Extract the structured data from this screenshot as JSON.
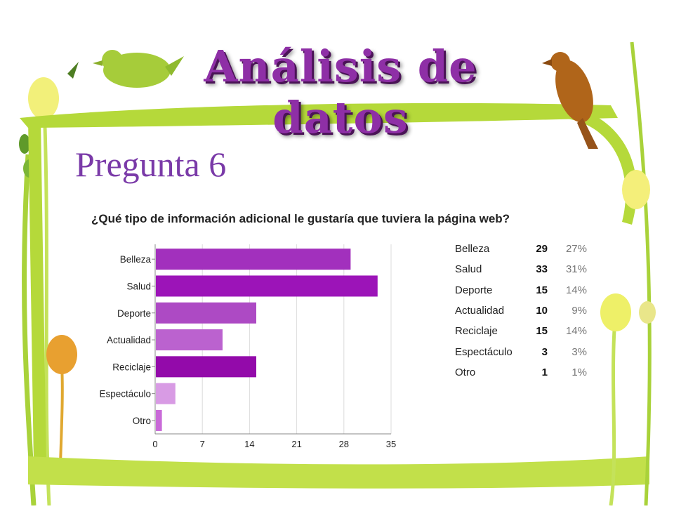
{
  "slide": {
    "title": "Análisis de datos",
    "subtitle": "Pregunta 6"
  },
  "colors": {
    "title": "#8e2fa6",
    "frame_green": "#b5d93a",
    "bar_colors": [
      "#a230bd",
      "#9c14b8",
      "#ad4ac4",
      "#bb62cf",
      "#930aaa",
      "#d89be4",
      "#c96ad8"
    ]
  },
  "chart_data": {
    "type": "bar",
    "orientation": "horizontal",
    "title": "¿Qué tipo de información adicional le gustaría que tuviera la página web?",
    "categories": [
      "Belleza",
      "Salud",
      "Deporte",
      "Actualidad",
      "Reciclaje",
      "Espectáculo",
      "Otro"
    ],
    "values": [
      29,
      33,
      15,
      10,
      15,
      3,
      1
    ],
    "percentages": [
      "27%",
      "31%",
      "14%",
      "9%",
      "14%",
      "3%",
      "1%"
    ],
    "xlim": [
      0,
      35
    ],
    "xticks": [
      "0",
      "7",
      "14",
      "21",
      "28",
      "35"
    ],
    "grid": true,
    "legend": "table at right"
  }
}
